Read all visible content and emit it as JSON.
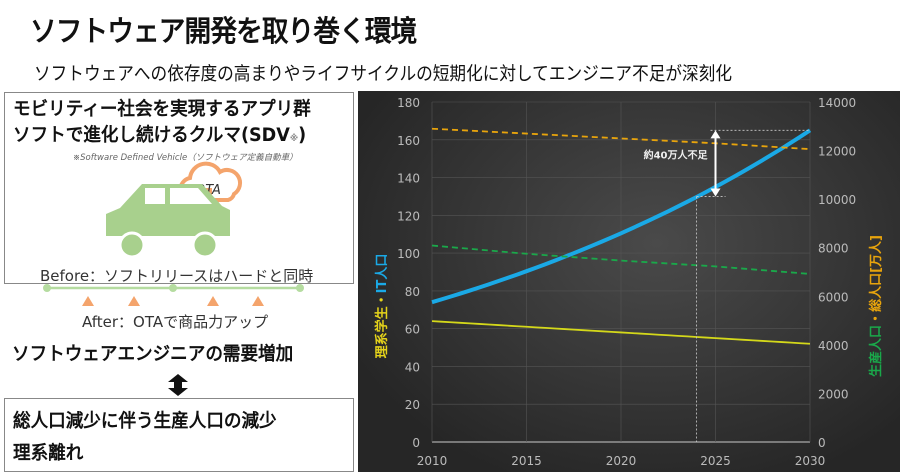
{
  "header": {
    "title": "ソフトウェア開発を取り巻く環境",
    "subtitle": "ソフトウェアへの依存度の高まりやライフサイクルの短期化に対してエンジニア不足が深刻化"
  },
  "left": {
    "line1": "モビリティー社会を実現するアプリ群",
    "line2": "ソフトで進化し続けるクルマ(SDV",
    "line2_mark": "※",
    "line2_close": ")",
    "note": "※Software Defined Vehicle（ソフトウェア定義自動車）",
    "cloud_label": "OTA",
    "before": "Before：ソフトリリースはハードと同時",
    "after": "After：OTAで商品力アップ",
    "demand": "ソフトウェアエンジニアの需要増加",
    "bottom1": "総人口減少に伴う生産人口の減少",
    "bottom2": "理系離れ",
    "colors": {
      "car": "#a8d08d",
      "cloud": "#f4a46c",
      "timeline": "#b5dca0",
      "triangle": "#f4a46c"
    }
  },
  "chart_data": {
    "type": "line",
    "x": [
      2010,
      2015,
      2020,
      2025,
      2030
    ],
    "xlim": [
      2010,
      2030
    ],
    "ylim_left": [
      0,
      180
    ],
    "ylim_right": [
      0,
      14000
    ],
    "left_ticks": [
      0,
      20,
      40,
      60,
      80,
      100,
      120,
      140,
      160,
      180
    ],
    "right_ticks": [
      0,
      2000,
      4000,
      6000,
      8000,
      10000,
      12000,
      14000
    ],
    "ylabel_left": {
      "part1": "理系学生",
      "sep": "・",
      "part2": "IT人口"
    },
    "ylabel_right": {
      "part1": "生産人口",
      "sep": "・",
      "part2": "総人口[万人]"
    },
    "grid": true,
    "series": [
      {
        "axis": "left",
        "color": "#1aa9e6",
        "style": "solid",
        "values": [
          74,
          90,
          110,
          135,
          165
        ]
      },
      {
        "axis": "left",
        "color": "#d4d81a",
        "style": "solid",
        "values": [
          64,
          61,
          58,
          55,
          52
        ]
      },
      {
        "axis": "right",
        "color": "#e8a40c",
        "style": "dashed",
        "values": [
          12900,
          12700,
          12500,
          12300,
          12060
        ]
      },
      {
        "axis": "right",
        "color": "#1aa84a",
        "style": "dashed",
        "values": [
          8090,
          7750,
          7470,
          7230,
          6920
        ]
      }
    ],
    "annotation": {
      "text": "約40万人不足",
      "x": 2025,
      "from": 130,
      "to": 165,
      "marker_x": 2024
    }
  }
}
